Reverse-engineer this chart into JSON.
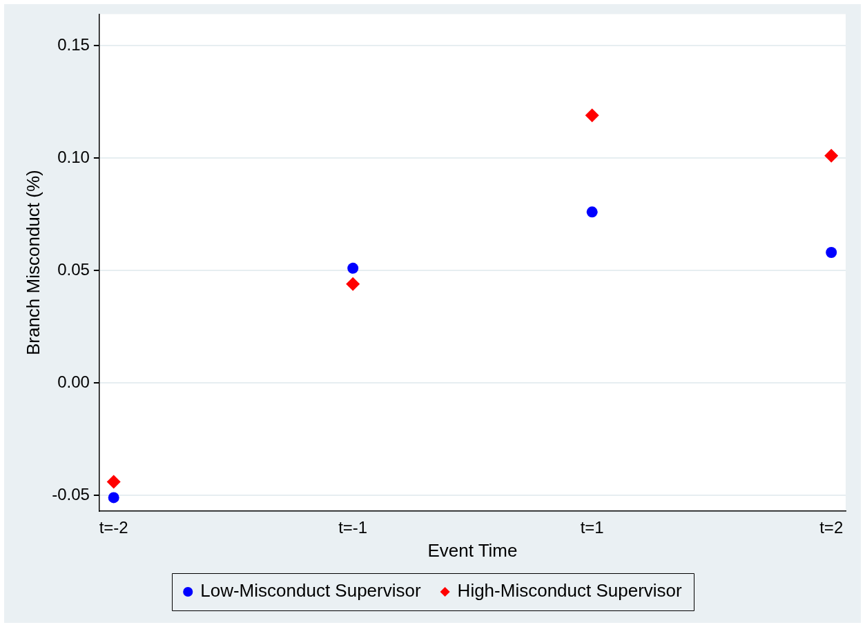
{
  "chart_data": {
    "type": "scatter",
    "xlabel": "Event Time",
    "ylabel": "Branch Misconduct (%)",
    "categories": [
      "t=-2",
      "t=-1",
      "t=1",
      "t=2"
    ],
    "series": [
      {
        "name": "Low-Misconduct Supervisor",
        "color": "#0000ff",
        "marker": "circle",
        "values": [
          -0.051,
          0.051,
          0.076,
          0.058
        ]
      },
      {
        "name": "High-Misconduct Supervisor",
        "color": "#ff0000",
        "marker": "diamond",
        "values": [
          -0.044,
          0.044,
          0.119,
          0.101
        ]
      }
    ],
    "ylim": [
      -0.057,
      0.164
    ],
    "yticks": [
      {
        "value": -0.05,
        "label": "-0.05"
      },
      {
        "value": 0,
        "label": "0.00"
      },
      {
        "value": 0.05,
        "label": "0.05"
      },
      {
        "value": 0.1,
        "label": "0.10"
      },
      {
        "value": 0.15,
        "label": "0.15"
      }
    ],
    "grid": "y",
    "legend": "bottom"
  }
}
